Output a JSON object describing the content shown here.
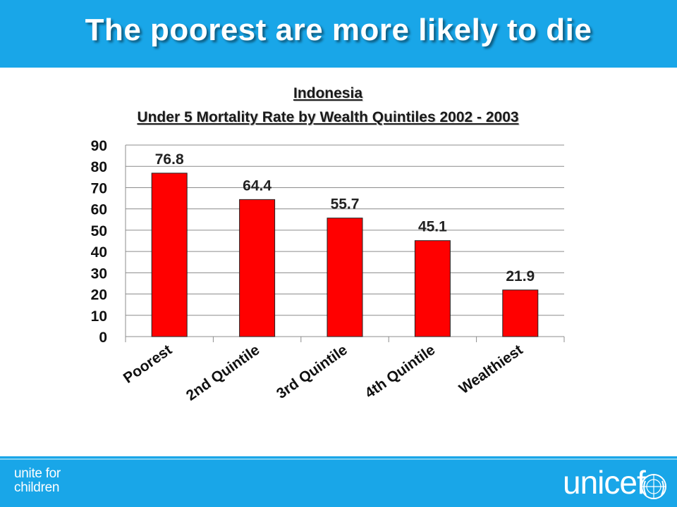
{
  "header": {
    "title": "The poorest are more likely to die"
  },
  "chart_data": {
    "type": "bar",
    "title": "Indonesia",
    "subtitle": "Under 5 Mortality Rate by Wealth Quintiles 2002 - 2003",
    "categories": [
      "Poorest",
      "2nd Quintile",
      "3rd Quintile",
      "4th Quintile",
      "Wealthiest"
    ],
    "values": [
      76.8,
      64.4,
      55.7,
      45.1,
      21.9
    ],
    "value_labels": [
      "76.8",
      "64.4",
      "55.7",
      "45.1",
      "21.9"
    ],
    "yticks": [
      "0",
      "10",
      "20",
      "30",
      "40",
      "50",
      "60",
      "70",
      "80",
      "90"
    ],
    "ylim": [
      0,
      90
    ],
    "xlabel": "",
    "ylabel": "",
    "grid": true,
    "bar_color": "#ff0000"
  },
  "footer": {
    "tagline_line1": "unite for",
    "tagline_line2": "children",
    "brand": "unicef",
    "logo_icon": "unicef-emblem-icon"
  },
  "colors": {
    "header": "#19a6e8",
    "footer": "#19a6e8",
    "bar": "#ff0000"
  }
}
